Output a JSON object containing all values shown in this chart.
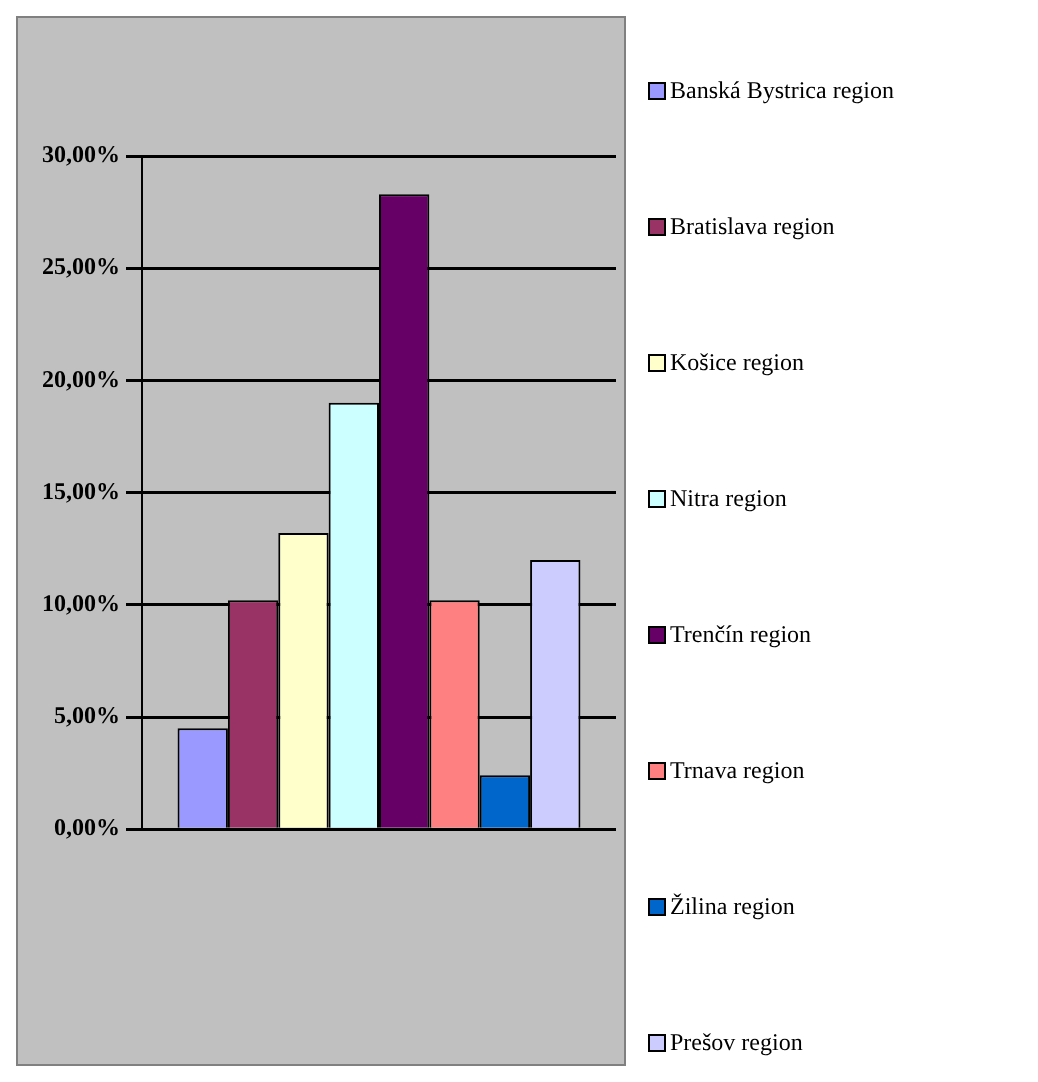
{
  "chart_data": {
    "type": "bar",
    "categories": [
      null
    ],
    "series": [
      {
        "name": "Banská Bystrica region",
        "color": "#9999ff",
        "values": [
          4.5
        ]
      },
      {
        "name": "Bratislava region",
        "color": "#993366",
        "values": [
          10.2
        ]
      },
      {
        "name": "Košice region",
        "color": "#ffffcc",
        "values": [
          13.2
        ]
      },
      {
        "name": "Nitra region",
        "color": "#ccffff",
        "values": [
          19.0
        ]
      },
      {
        "name": "Trenčín region",
        "color": "#660066",
        "values": [
          28.3
        ]
      },
      {
        "name": "Trnava region",
        "color": "#ff8080",
        "values": [
          10.2
        ]
      },
      {
        "name": "Žilina region",
        "color": "#0066cc",
        "values": [
          2.4
        ]
      },
      {
        "name": "Prešov region",
        "color": "#ccccff",
        "values": [
          12.0
        ]
      }
    ],
    "ylim": [
      0,
      30
    ],
    "yticks": [
      {
        "value": 0,
        "label": "0,00%"
      },
      {
        "value": 5,
        "label": "5,00%"
      },
      {
        "value": 10,
        "label": "10,00%"
      },
      {
        "value": 15,
        "label": "15,00%"
      },
      {
        "value": 20,
        "label": "20,00%"
      },
      {
        "value": 25,
        "label": "25,00%"
      },
      {
        "value": 30,
        "label": "30,00%"
      }
    ],
    "grid": "y",
    "legend": "right"
  }
}
